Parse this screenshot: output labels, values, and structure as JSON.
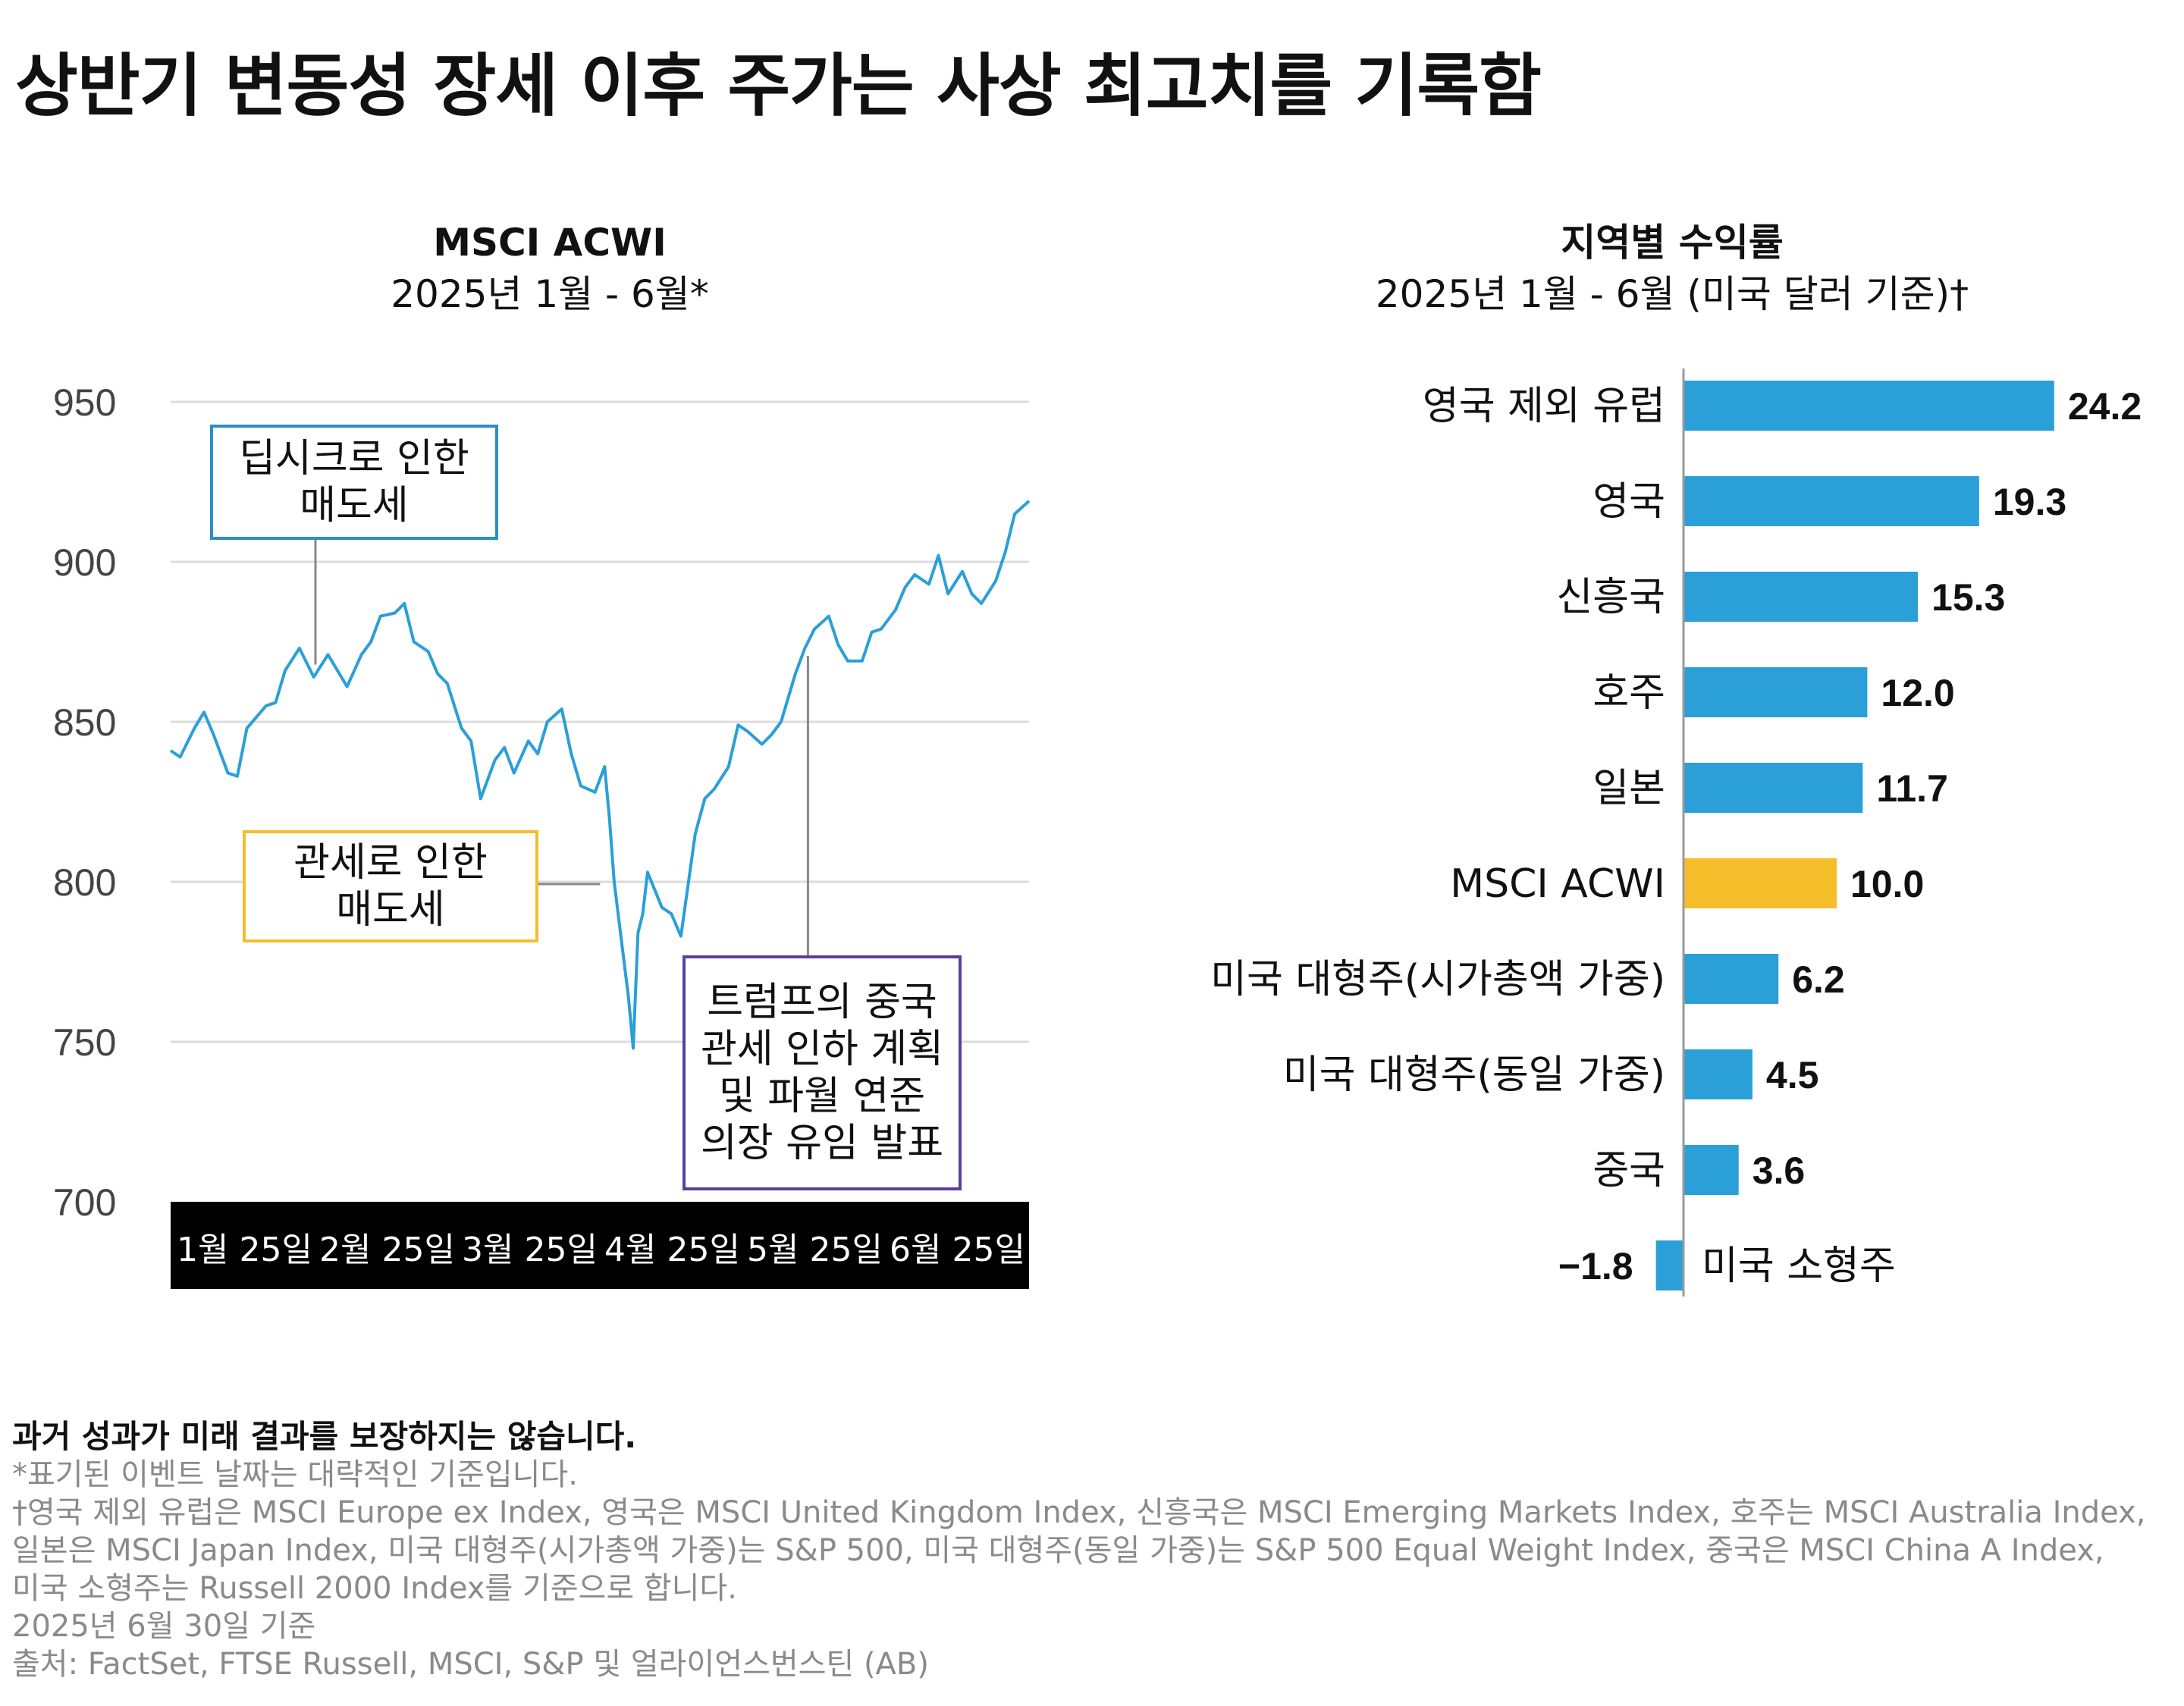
{
  "title": "상반기 변동성 장세 이후 주가는 사상 최고치를 기록함",
  "left_chart_header": {
    "title": "MSCI ACWI",
    "subtitle": "2025년 1월 - 6월*"
  },
  "right_chart_header": {
    "title": "지역별 수익률",
    "subtitle": "2025년 1월 - 6월 (미국 달러 기준)†"
  },
  "annotations": {
    "deepseek": "딥시크로 인한\n매도세",
    "tariff": "관세로 인한\n매도세",
    "trump": "트럼프의 중국\n관세 인하 계획\n및 파월 연준\n의장 유임 발표"
  },
  "colors": {
    "line": "#2a9fd8",
    "bar": "#2a9fd8",
    "highlight_bar": "#f5bd2a",
    "grid": "#dcdcdc",
    "axis_band": "#000000",
    "deepseek_box": "#2a8fc8",
    "tariff_box": "#f5bd2a",
    "trump_box": "#5a3e9c"
  },
  "chart_data": [
    {
      "type": "line",
      "title": "MSCI ACWI",
      "subtitle": "2025년 1월 - 6월*",
      "ylim": [
        700,
        950
      ],
      "yticks": [
        950,
        900,
        850,
        800,
        750,
        700
      ],
      "grid": true,
      "x_ticks": [
        "1월 25일",
        "2월 25일",
        "3월 25일",
        "4월 25일",
        "5월 25일",
        "6월 25일"
      ],
      "x_range": [
        "2025-01-01",
        "2025-06-30"
      ],
      "series": [
        {
          "x": [
            "2025-01-01",
            "2025-01-03",
            "2025-01-06",
            "2025-01-08",
            "2025-01-10",
            "2025-01-13",
            "2025-01-15",
            "2025-01-17",
            "2025-01-21",
            "2025-01-23",
            "2025-01-25",
            "2025-01-28",
            "2025-01-31",
            "2025-02-03",
            "2025-02-05",
            "2025-02-07",
            "2025-02-10",
            "2025-02-12",
            "2025-02-14",
            "2025-02-17",
            "2025-02-19",
            "2025-02-21",
            "2025-02-24",
            "2025-02-26",
            "2025-02-28",
            "2025-03-03",
            "2025-03-05",
            "2025-03-07",
            "2025-03-10",
            "2025-03-12",
            "2025-03-14",
            "2025-03-17",
            "2025-03-19",
            "2025-03-21",
            "2025-03-24",
            "2025-03-26",
            "2025-03-28",
            "2025-03-31",
            "2025-04-02",
            "2025-04-03",
            "2025-04-04",
            "2025-04-07",
            "2025-04-08",
            "2025-04-09",
            "2025-04-10",
            "2025-04-11",
            "2025-04-14",
            "2025-04-16",
            "2025-04-18",
            "2025-04-21",
            "2025-04-23",
            "2025-04-25",
            "2025-04-28",
            "2025-04-30",
            "2025-05-02",
            "2025-05-05",
            "2025-05-07",
            "2025-05-09",
            "2025-05-12",
            "2025-05-14",
            "2025-05-16",
            "2025-05-19",
            "2025-05-21",
            "2025-05-23",
            "2025-05-26",
            "2025-05-28",
            "2025-05-30",
            "2025-06-02",
            "2025-06-04",
            "2025-06-06",
            "2025-06-09",
            "2025-06-11",
            "2025-06-13",
            "2025-06-16",
            "2025-06-18",
            "2025-06-20",
            "2025-06-23",
            "2025-06-25",
            "2025-06-27",
            "2025-06-30"
          ],
          "y": [
            841,
            839,
            848,
            853,
            846,
            834,
            833,
            848,
            855,
            856,
            866,
            873,
            864,
            871,
            866,
            861,
            871,
            875,
            883,
            884,
            887,
            875,
            872,
            865,
            862,
            848,
            844,
            826,
            838,
            842,
            834,
            844,
            840,
            850,
            854,
            840,
            830,
            828,
            836,
            820,
            800,
            764,
            748,
            784,
            790,
            803,
            792,
            790,
            783,
            815,
            826,
            829,
            836,
            849,
            847,
            843,
            846,
            850,
            865,
            873,
            879,
            883,
            874,
            869,
            869,
            878,
            879,
            885,
            892,
            896,
            893,
            902,
            890,
            897,
            890,
            887,
            894,
            903,
            915,
            919
          ]
        }
      ]
    },
    {
      "type": "bar",
      "orientation": "horizontal",
      "title": "지역별 수익률",
      "subtitle": "2025년 1월 - 6월 (미국 달러 기준)†",
      "categories": [
        "영국 제외 유럽",
        "영국",
        "신흥국",
        "호주",
        "일본",
        "MSCI ACWI",
        "미국 대형주(시가총액 가중)",
        "미국 대형주(동일 가중)",
        "중국",
        "미국 소형주"
      ],
      "values": [
        24.2,
        19.3,
        15.3,
        12.0,
        11.7,
        10.0,
        6.2,
        4.5,
        3.6,
        -1.8
      ],
      "value_labels": [
        "24.2",
        "19.3",
        "15.3",
        "12.0",
        "11.7",
        "10.0",
        "6.2",
        "4.5",
        "3.6",
        "−1.8"
      ],
      "highlight": "MSCI ACWI"
    }
  ],
  "footer": {
    "disclaimer": "과거 성과가 미래 결과를 보장하지는 않습니다.",
    "notes": [
      "*표기된 이벤트 날짜는 대략적인 기준입니다.",
      "†영국 제외 유럽은 MSCI Europe ex Index, 영국은 MSCI United Kingdom Index, 신흥국은 MSCI Emerging Markets Index, 호주는 MSCI Australia Index,",
      "일본은 MSCI Japan Index, 미국 대형주(시가총액 가중)는 S&P 500, 미국 대형주(동일 가중)는 S&P 500 Equal Weight Index, 중국은 MSCI China A Index,",
      "미국 소형주는 Russell 2000 Index를 기준으로 합니다.",
      "2025년 6월 30일 기준",
      "출처: FactSet, FTSE Russell, MSCI, S&P 및 얼라이언스번스틴 (AB)"
    ]
  }
}
